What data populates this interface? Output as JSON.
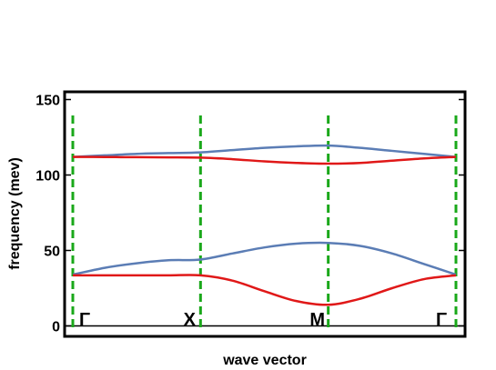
{
  "chart_data": {
    "type": "line",
    "title": "",
    "xlabel": "wave vector",
    "ylabel": "frequency (mev)",
    "xlim": [
      0,
      3
    ],
    "ylim": [
      -7,
      155
    ],
    "y_ticks": [
      0,
      50,
      100,
      150
    ],
    "grid": false,
    "symmetry_points": [
      {
        "label": "Γ",
        "x": 0
      },
      {
        "label": "X",
        "x": 1
      },
      {
        "label": "M",
        "x": 2
      },
      {
        "label": "Γ",
        "x": 3
      }
    ],
    "colors": {
      "upper_branch": "#5b7db5",
      "lower_branch": "#e01818",
      "symmetry_line": "#1aa81a"
    },
    "series": [
      {
        "color": "#5b7db5",
        "x": [
          0,
          0.25,
          0.5,
          0.75,
          1,
          1.25,
          1.5,
          1.75,
          2,
          2.25,
          2.5,
          2.75,
          3
        ],
        "y": [
          112,
          113,
          114,
          114.5,
          115,
          116.5,
          118,
          119,
          119.5,
          118,
          116,
          114,
          112
        ]
      },
      {
        "color": "#e01818",
        "x": [
          0,
          0.25,
          0.5,
          0.75,
          1,
          1.25,
          1.5,
          1.75,
          2,
          2.25,
          2.5,
          2.75,
          3
        ],
        "y": [
          112,
          111.9,
          111.8,
          111.7,
          111.5,
          110.5,
          109,
          108,
          107.5,
          108,
          109.5,
          111,
          112
        ]
      },
      {
        "color": "#5b7db5",
        "x": [
          0,
          0.25,
          0.5,
          0.75,
          1,
          1.25,
          1.5,
          1.75,
          2,
          2.25,
          2.5,
          2.75,
          3
        ],
        "y": [
          34,
          38.5,
          41.5,
          43.5,
          44,
          48,
          52,
          54.5,
          55,
          53,
          48,
          41,
          34
        ]
      },
      {
        "color": "#e01818",
        "x": [
          0,
          0.25,
          0.5,
          0.75,
          1,
          1.25,
          1.5,
          1.75,
          2,
          2.25,
          2.5,
          2.75,
          3
        ],
        "y": [
          33.5,
          33.5,
          33.5,
          33.5,
          33.5,
          30,
          23,
          16.5,
          14,
          18,
          25,
          31,
          33.5
        ]
      }
    ]
  }
}
